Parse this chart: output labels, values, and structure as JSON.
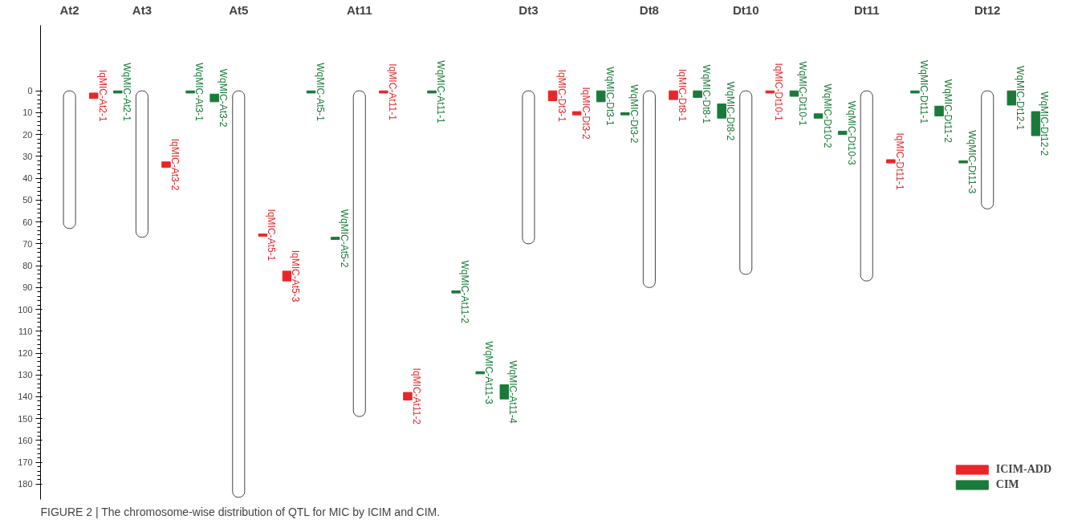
{
  "chart_data": {
    "type": "bar",
    "categories": [
      "At2",
      null,
      null,
      "At3",
      null,
      null,
      null,
      "At5",
      null,
      null,
      null,
      null,
      "At11",
      null,
      null,
      null,
      null,
      null,
      null,
      "Dt3",
      null,
      null,
      null,
      null,
      "Dt8",
      null,
      null,
      null,
      "Dt10",
      null,
      null,
      null,
      null,
      "Dt11",
      null,
      null,
      null,
      null,
      "Dt12",
      null,
      null
    ],
    "series": [
      {
        "color": "#ffffff",
        "values": [
          63,
          null,
          null,
          67,
          null,
          null,
          null,
          186,
          null,
          null,
          null,
          null,
          149,
          null,
          null,
          null,
          null,
          null,
          null,
          70,
          null,
          null,
          null,
          null,
          90,
          null,
          null,
          null,
          84,
          null,
          null,
          null,
          null,
          87,
          null,
          null,
          null,
          null,
          54,
          null,
          null
        ],
        "base": [
          0,
          null,
          null,
          0,
          null,
          null,
          null,
          0,
          null,
          null,
          null,
          null,
          0,
          null,
          null,
          null,
          null,
          null,
          null,
          0,
          null,
          null,
          null,
          null,
          0,
          null,
          null,
          null,
          0,
          null,
          null,
          null,
          null,
          0,
          null,
          null,
          null,
          null,
          0,
          null,
          null
        ]
      },
      {
        "name": "ICIM-ADD",
        "color": "#e8262a",
        "values": [
          null,
          2.5,
          null,
          null,
          2.5,
          null,
          null,
          null,
          1,
          4.5,
          null,
          null,
          null,
          1,
          3.5,
          null,
          null,
          null,
          null,
          null,
          4.5,
          1.5,
          null,
          null,
          null,
          4,
          null,
          null,
          null,
          1,
          null,
          null,
          null,
          null,
          1.5,
          null,
          null,
          null,
          null,
          null,
          null
        ],
        "base": [
          null,
          1,
          null,
          null,
          32.5,
          null,
          null,
          null,
          65.5,
          82.5,
          null,
          null,
          null,
          0,
          138,
          null,
          null,
          null,
          null,
          null,
          0,
          9.5,
          null,
          null,
          null,
          0,
          null,
          null,
          null,
          0,
          null,
          null,
          null,
          null,
          31.5,
          null,
          null,
          null,
          null,
          null,
          null
        ],
        "value_labels": [
          null,
          "IqMIC-At2-1",
          null,
          null,
          "IqMIC-At3-2",
          null,
          null,
          null,
          "IqMIC-At5-1",
          "IqMIC-At5-3",
          null,
          null,
          null,
          "IqMIC-At11-1",
          "IqMIC-At11-2",
          null,
          null,
          null,
          null,
          null,
          "IqMIC-Dt3-1",
          "IqMIC-Dt3-2",
          null,
          null,
          null,
          "IqMIC-Dt8-1",
          null,
          null,
          null,
          "IqMIC-Dt10-1",
          null,
          null,
          null,
          null,
          "IqMIC-Dt11-1",
          null,
          null,
          null,
          null,
          null,
          null
        ]
      },
      {
        "name": "CIM",
        "color": "#1a7a3a",
        "values": [
          null,
          null,
          1,
          null,
          null,
          1,
          3.5,
          null,
          null,
          null,
          1,
          1,
          null,
          null,
          null,
          1,
          1,
          1,
          6.5,
          null,
          null,
          null,
          5,
          1,
          null,
          null,
          3,
          6.5,
          null,
          null,
          2.5,
          2,
          1.5,
          null,
          null,
          1,
          4.5,
          1,
          null,
          6.5,
          11
        ],
        "base": [
          null,
          null,
          0,
          null,
          null,
          0,
          1.5,
          null,
          null,
          null,
          0,
          67,
          null,
          null,
          null,
          0,
          91.5,
          128.5,
          134.5,
          null,
          null,
          null,
          0,
          10,
          null,
          null,
          0,
          6,
          null,
          null,
          0,
          10.5,
          18.5,
          null,
          null,
          0,
          7,
          32,
          null,
          0,
          9.5
        ],
        "value_labels": [
          null,
          null,
          "WqMIC-At2-1",
          null,
          null,
          "WqMIC-At3-1",
          "WqMIC-At3-2",
          null,
          null,
          null,
          "WqMIC-At5-1",
          "WqMIC-At5-2",
          null,
          null,
          null,
          "WqMIC-At11-1",
          "WqMIC-At11-2",
          "WqMIC-At11-3",
          "WqMIC-At11-4",
          null,
          null,
          null,
          "WqMIC-Dt3-1",
          "WqMIC-Dt3-2",
          null,
          null,
          "WqMIC-Dt8-1",
          "WqMIC-Dt8-2",
          null,
          null,
          "WqMIC-Dt10-1",
          "WqMIC-Dt10-2",
          "WqMIC-Dt10-3",
          null,
          null,
          "WqMIC-Dt11-1",
          "WqMIC-Dt11-2",
          "WqMIC-Dt11-3",
          null,
          "WqMIC-Dt12-1",
          "WqMIC-Dt12-2"
        ]
      }
    ],
    "ylim": [
      187,
      -30
    ],
    "yticks": [
      0,
      10,
      20,
      30,
      40,
      50,
      60,
      70,
      80,
      90,
      100,
      110,
      120,
      130,
      140,
      150,
      160,
      170,
      180
    ],
    "grid": false,
    "legend": "bottom right",
    "annotations": [
      "FIGURE 2 | The chromosome-wise distribution of QTL for MIC by ICIM and CIM."
    ]
  }
}
